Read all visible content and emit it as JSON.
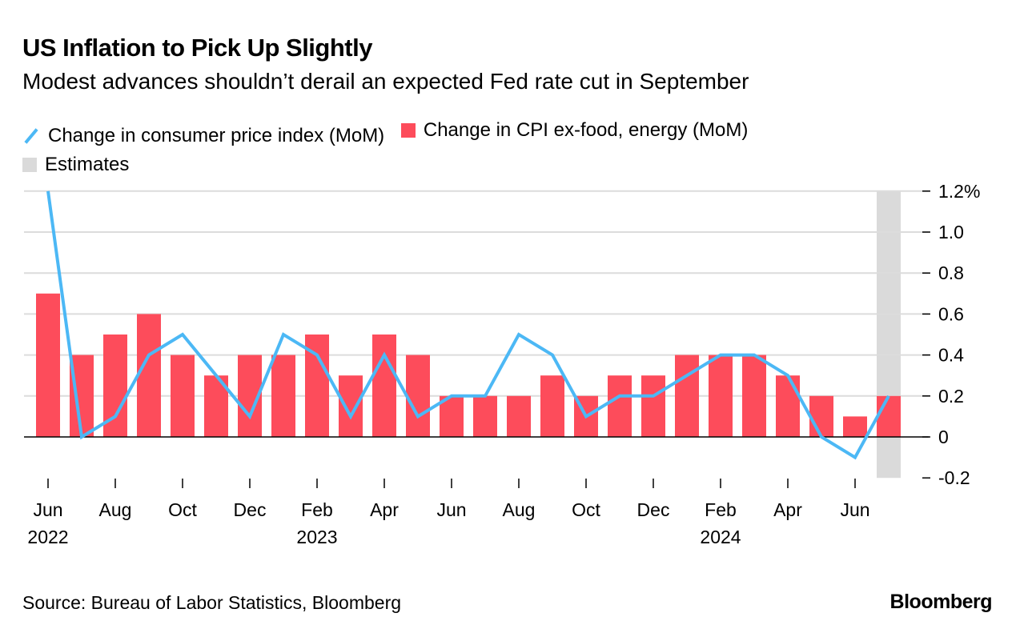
{
  "title": "US Inflation to Pick Up Slightly",
  "subtitle": "Modest advances shouldn’t derail an expected Fed rate cut in September",
  "source": "Source: Bureau of Labor Statistics, Bloomberg",
  "logo": "Bloomberg",
  "colors": {
    "line": "#4cb8f5",
    "bars": "#fd4c5b",
    "estimates": "#dadada"
  },
  "chart_data": {
    "type": "bar+line",
    "months": [
      "Jun 2022",
      "Jul 2022",
      "Aug 2022",
      "Sep 2022",
      "Oct 2022",
      "Nov 2022",
      "Dec 2022",
      "Jan 2023",
      "Feb 2023",
      "Mar 2023",
      "Apr 2023",
      "May 2023",
      "Jun 2023",
      "Jul 2023",
      "Aug 2023",
      "Sep 2023",
      "Oct 2023",
      "Nov 2023",
      "Dec 2023",
      "Jan 2024",
      "Feb 2024",
      "Mar 2024",
      "Apr 2024",
      "May 2024",
      "Jun 2024",
      "Jul 2024"
    ],
    "series": [
      {
        "name": "Change in consumer price index (MoM)",
        "type": "line",
        "values": [
          1.2,
          0.0,
          0.1,
          0.4,
          0.5,
          0.3,
          0.1,
          0.5,
          0.4,
          0.1,
          0.4,
          0.1,
          0.2,
          0.2,
          0.5,
          0.4,
          0.1,
          0.2,
          0.2,
          0.3,
          0.4,
          0.4,
          0.3,
          0.0,
          -0.1,
          0.2
        ]
      },
      {
        "name": "Change in CPI ex-food, energy (MoM)",
        "type": "bar",
        "values": [
          0.7,
          0.4,
          0.5,
          0.6,
          0.4,
          0.3,
          0.4,
          0.4,
          0.5,
          0.3,
          0.5,
          0.4,
          0.2,
          0.2,
          0.2,
          0.3,
          0.2,
          0.3,
          0.3,
          0.4,
          0.4,
          0.4,
          0.3,
          0.2,
          0.1,
          0.2
        ]
      }
    ],
    "estimates_label": "Estimates",
    "estimate_months": [
      "Jul 2024"
    ],
    "yticks": [
      {
        "v": 1.2,
        "label": "1.2%"
      },
      {
        "v": 1.0,
        "label": "1.0"
      },
      {
        "v": 0.8,
        "label": "0.8"
      },
      {
        "v": 0.6,
        "label": "0.6"
      },
      {
        "v": 0.4,
        "label": "0.4"
      },
      {
        "v": 0.2,
        "label": "0.2"
      },
      {
        "v": 0,
        "label": "0"
      },
      {
        "v": -0.2,
        "label": "-0.2"
      }
    ],
    "xticks": [
      {
        "i": 0,
        "label": "Jun",
        "year": "2022"
      },
      {
        "i": 2,
        "label": "Aug"
      },
      {
        "i": 4,
        "label": "Oct"
      },
      {
        "i": 6,
        "label": "Dec"
      },
      {
        "i": 8,
        "label": "Feb",
        "year": "2023"
      },
      {
        "i": 10,
        "label": "Apr"
      },
      {
        "i": 12,
        "label": "Jun"
      },
      {
        "i": 14,
        "label": "Aug"
      },
      {
        "i": 16,
        "label": "Oct"
      },
      {
        "i": 18,
        "label": "Dec"
      },
      {
        "i": 20,
        "label": "Feb",
        "year": "2024"
      },
      {
        "i": 22,
        "label": "Apr"
      },
      {
        "i": 24,
        "label": "Jun"
      }
    ],
    "ylim": [
      -0.2,
      1.2
    ],
    "legend_position": "top-left",
    "grid": true
  }
}
